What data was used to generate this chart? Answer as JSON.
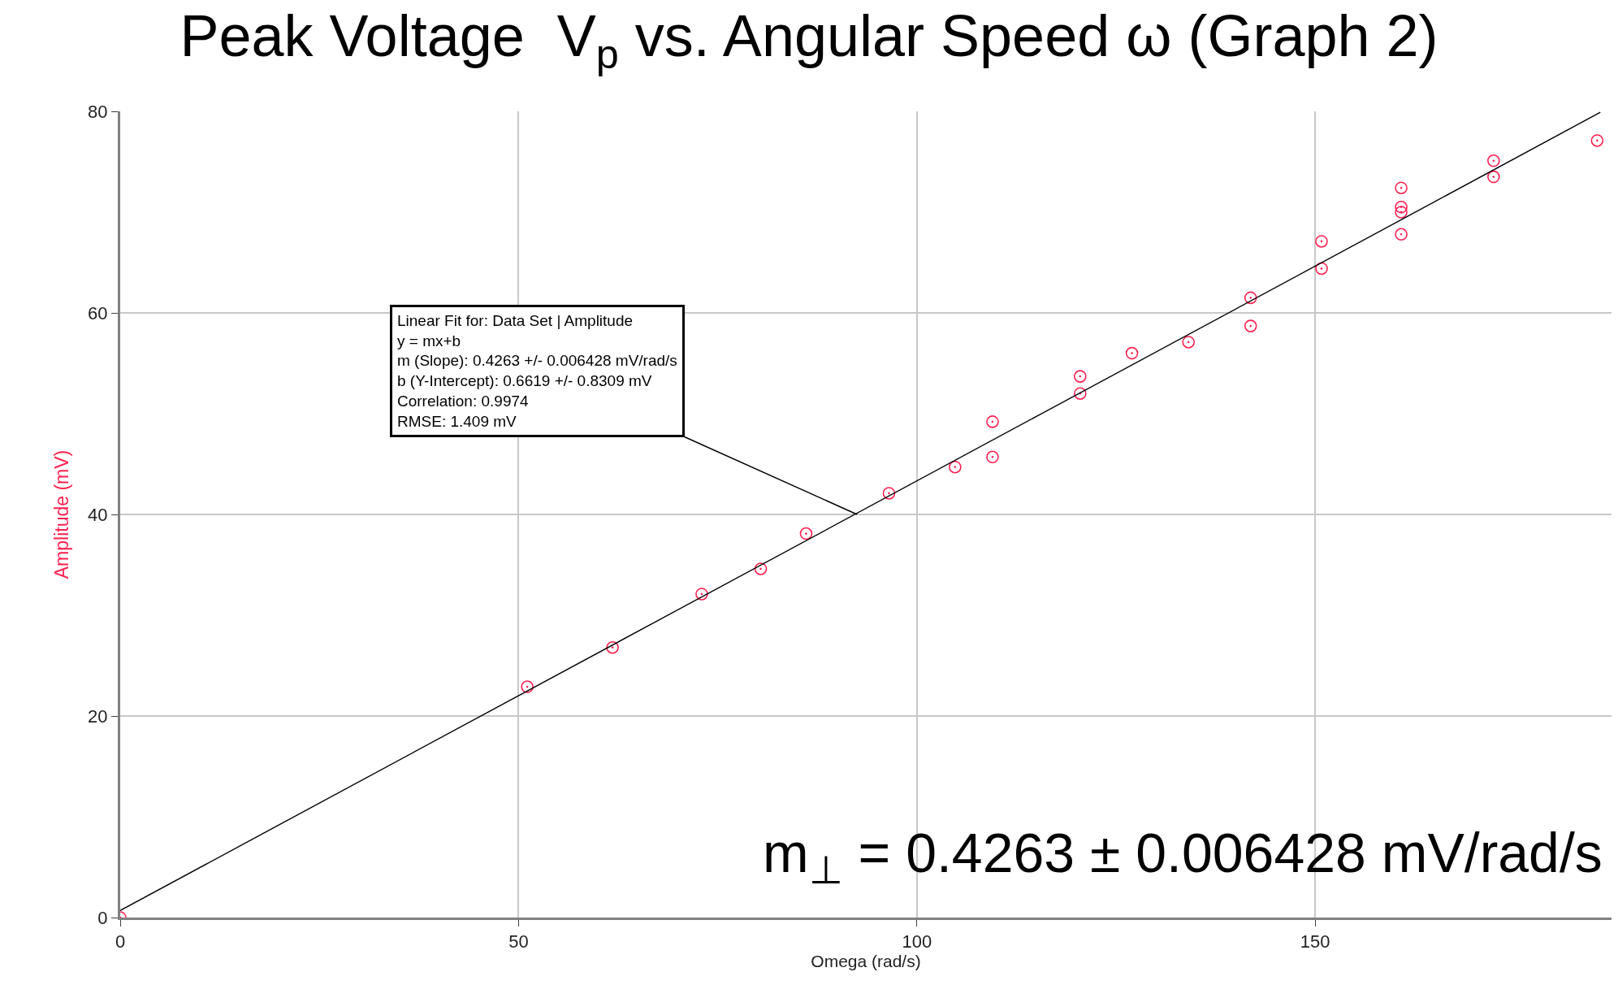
{
  "chart_data": {
    "type": "scatter",
    "title": "Peak Voltage  V$_{p}$ vs. Angular Speed ω (Graph 2)",
    "xlabel": "Omega (rad/s)",
    "ylabel": "Amplitude (mV)",
    "series": [
      {
        "color": "#ff2050",
        "marker": "circle",
        "x": [
          0,
          51.1,
          61.8,
          73.0,
          80.4,
          86.1,
          96.5,
          104.8,
          109.5,
          109.5,
          120.5,
          120.5,
          127.0,
          134.1,
          141.9,
          141.9,
          150.8,
          150.8,
          160.8,
          160.8,
          160.8,
          160.8,
          172.4,
          172.4,
          185.4
        ],
        "values": [
          0,
          22.9,
          26.8,
          32.1,
          34.6,
          38.1,
          42.1,
          44.7,
          49.2,
          45.7,
          53.7,
          52.0,
          56.0,
          57.1,
          61.5,
          58.7,
          67.1,
          64.4,
          72.4,
          70.5,
          70.0,
          67.8,
          75.1,
          73.5,
          77.1
        ]
      },
      {
        "type": "line",
        "color": "#000000",
        "marker": "none",
        "x": [
          0,
          185.8
        ],
        "values": [
          0.7,
          79.9
        ]
      }
    ],
    "xlim": [
      0,
      187.2
    ],
    "ylim": [
      0,
      80
    ],
    "xticks": [
      0,
      50,
      100,
      150
    ],
    "yticks": [
      0,
      20,
      40,
      60,
      80
    ],
    "grid": true,
    "annotations": [
      {
        "text": "Linear Fit for: Data Set | Amplitude\ny = mx+b\nm (Slope): 0.4263 +/- 0.006428 mV/rad/s\nb (Y-Intercept): 0.6619 +/- 0.8309 mV\nCorrelation: 0.9974\nRMSE: 1.409 mV",
        "x": 92.5,
        "y": 40
      },
      "m$_{⊥}$ = 0.4263 ± 0.006428 mV/rad/s"
    ]
  }
}
